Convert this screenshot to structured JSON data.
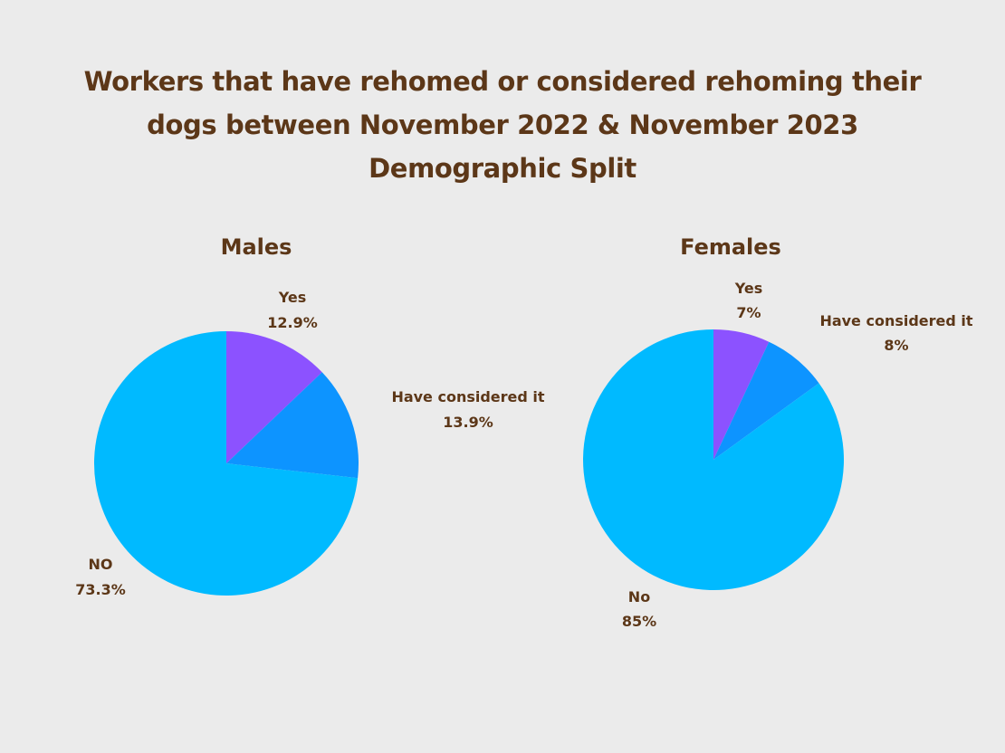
{
  "title": {
    "line1": "Workers that have rehomed or considered rehoming their",
    "line2": "dogs between November 2022 & November 2023",
    "line3": "Demographic Split"
  },
  "colors": {
    "background": "#ebebeb",
    "text": "#5c3718",
    "yes": "#8c52ff",
    "considered": "#0d94ff",
    "no": "#00baff"
  },
  "chart_data": [
    {
      "type": "pie",
      "title": "Males",
      "slices": [
        {
          "label": "Yes",
          "value": 12.9,
          "value_label": "12.9%",
          "color": "#8c52ff"
        },
        {
          "label": "Have considered it",
          "value": 13.9,
          "value_label": "13.9%",
          "color": "#0d94ff"
        },
        {
          "label": "NO",
          "value": 73.3,
          "value_label": "73.3%",
          "color": "#00baff"
        }
      ]
    },
    {
      "type": "pie",
      "title": "Females",
      "slices": [
        {
          "label": "Yes",
          "value": 7,
          "value_label": "7%",
          "color": "#8c52ff"
        },
        {
          "label": "Have considered it",
          "value": 8,
          "value_label": "8%",
          "color": "#0d94ff"
        },
        {
          "label": "No",
          "value": 85,
          "value_label": "85%",
          "color": "#00baff"
        }
      ]
    }
  ]
}
